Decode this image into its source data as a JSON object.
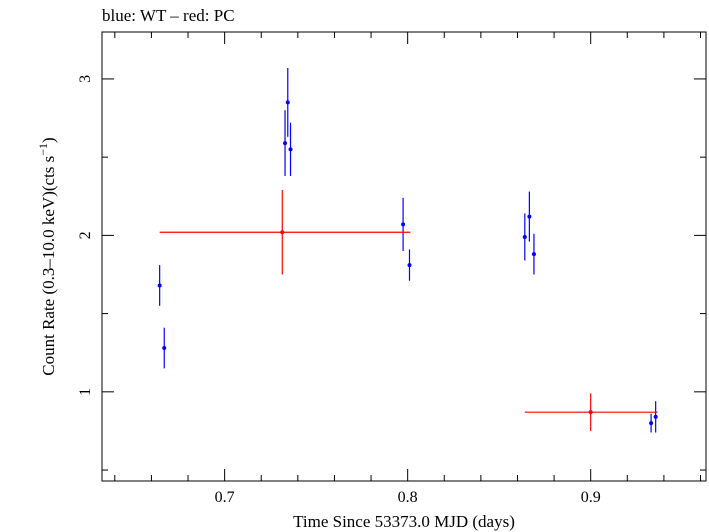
{
  "chart_data": {
    "type": "scatter",
    "title": "blue: WT – red: PC",
    "xlabel": "Time Since 53373.0 MJD (days)",
    "ylabel_main": "Count Rate (0.3–10.0 keV)(cts s",
    "ylabel_sup": "−1",
    "ylabel_end": ")",
    "xlim": [
      0.633,
      0.963
    ],
    "ylim": [
      0.43,
      3.3
    ],
    "xticks_major": [
      0.7,
      0.8,
      0.9
    ],
    "xtick_labels": [
      "0.7",
      "0.8",
      "0.9"
    ],
    "xticks_minor": [
      0.64,
      0.66,
      0.68,
      0.72,
      0.74,
      0.76,
      0.78,
      0.82,
      0.84,
      0.86,
      0.88,
      0.92,
      0.94,
      0.96
    ],
    "yticks_major": [
      1,
      2,
      3
    ],
    "ytick_labels": [
      "1",
      "2",
      "3"
    ],
    "yticks_minor": [
      0.5,
      1.5,
      2.5
    ],
    "grid": false,
    "series": [
      {
        "name": "WT",
        "color": "#0000ff",
        "points": [
          {
            "x": 0.6645,
            "y": 1.68,
            "xerr": 0.0007,
            "yerr": 0.13
          },
          {
            "x": 0.667,
            "y": 1.28,
            "xerr": 0.0007,
            "yerr": 0.13
          },
          {
            "x": 0.733,
            "y": 2.59,
            "xerr": 0.0005,
            "yerr": 0.21
          },
          {
            "x": 0.7345,
            "y": 2.85,
            "xerr": 0.0005,
            "yerr": 0.22
          },
          {
            "x": 0.736,
            "y": 2.55,
            "xerr": 0.0005,
            "yerr": 0.17
          },
          {
            "x": 0.7975,
            "y": 2.07,
            "xerr": 0.0007,
            "yerr": 0.17
          },
          {
            "x": 0.801,
            "y": 1.81,
            "xerr": 0.0007,
            "yerr": 0.1
          },
          {
            "x": 0.864,
            "y": 1.99,
            "xerr": 0.0007,
            "yerr": 0.15
          },
          {
            "x": 0.8665,
            "y": 2.12,
            "xerr": 0.0007,
            "yerr": 0.16
          },
          {
            "x": 0.869,
            "y": 1.88,
            "xerr": 0.0007,
            "yerr": 0.13
          },
          {
            "x": 0.933,
            "y": 0.8,
            "xerr": 0.0007,
            "yerr": 0.06
          },
          {
            "x": 0.9355,
            "y": 0.84,
            "xerr": 0.0007,
            "yerr": 0.1
          }
        ]
      },
      {
        "name": "PC",
        "color": "#ff0000",
        "points": [
          {
            "x": 0.7315,
            "y": 2.02,
            "xlo": 0.6645,
            "xhi": 0.8015,
            "yerr": 0.27
          },
          {
            "x": 0.9,
            "y": 0.87,
            "xlo": 0.864,
            "xhi": 0.9365,
            "yerr": 0.12
          }
        ]
      }
    ]
  }
}
